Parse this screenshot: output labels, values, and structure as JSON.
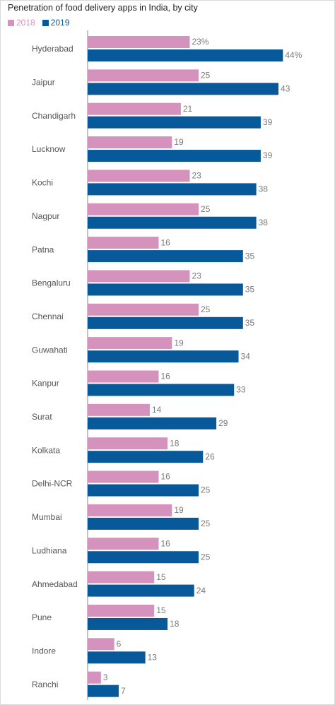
{
  "colors": {
    "s2018": "#d592bd",
    "s2019": "#07599a",
    "axis": "#8a8a8a",
    "label": "#555555",
    "value": "#7a7a7a"
  },
  "chart_data": {
    "type": "bar",
    "orientation": "horizontal",
    "title": "Penetration of food delivery apps in India, by city",
    "legend_position": "top-left",
    "grid": false,
    "xlim": [
      0,
      50
    ],
    "categories": [
      "Hyderabad",
      "Jaipur",
      "Chandigarh",
      "Lucknow",
      "Kochi",
      "Nagpur",
      "Patna",
      "Bengaluru",
      "Chennai",
      "Guwahati",
      "Kanpur",
      "Surat",
      "Kolkata",
      "Delhi-NCR",
      "Mumbai",
      "Ludhiana",
      "Ahmedabad",
      "Pune",
      "Indore",
      "Ranchi"
    ],
    "series": [
      {
        "name": "2018",
        "values": [
          23,
          25,
          21,
          19,
          23,
          25,
          16,
          23,
          25,
          19,
          16,
          14,
          18,
          16,
          19,
          16,
          15,
          15,
          6,
          3
        ],
        "labels": [
          "23%",
          "25",
          "21",
          "19",
          "23",
          "25",
          "16",
          "23",
          "25",
          "19",
          "16",
          "14",
          "18",
          "16",
          "19",
          "16",
          "15",
          "15",
          "6",
          "3"
        ]
      },
      {
        "name": "2019",
        "values": [
          44,
          43,
          39,
          39,
          38,
          38,
          35,
          35,
          35,
          34,
          33,
          29,
          26,
          25,
          25,
          25,
          24,
          18,
          13,
          7
        ],
        "labels": [
          "44%",
          "43",
          "39",
          "39",
          "38",
          "38",
          "35",
          "35",
          "35",
          "34",
          "33",
          "29",
          "26",
          "25",
          "25",
          "25",
          "24",
          "18",
          "13",
          "7"
        ]
      }
    ]
  }
}
